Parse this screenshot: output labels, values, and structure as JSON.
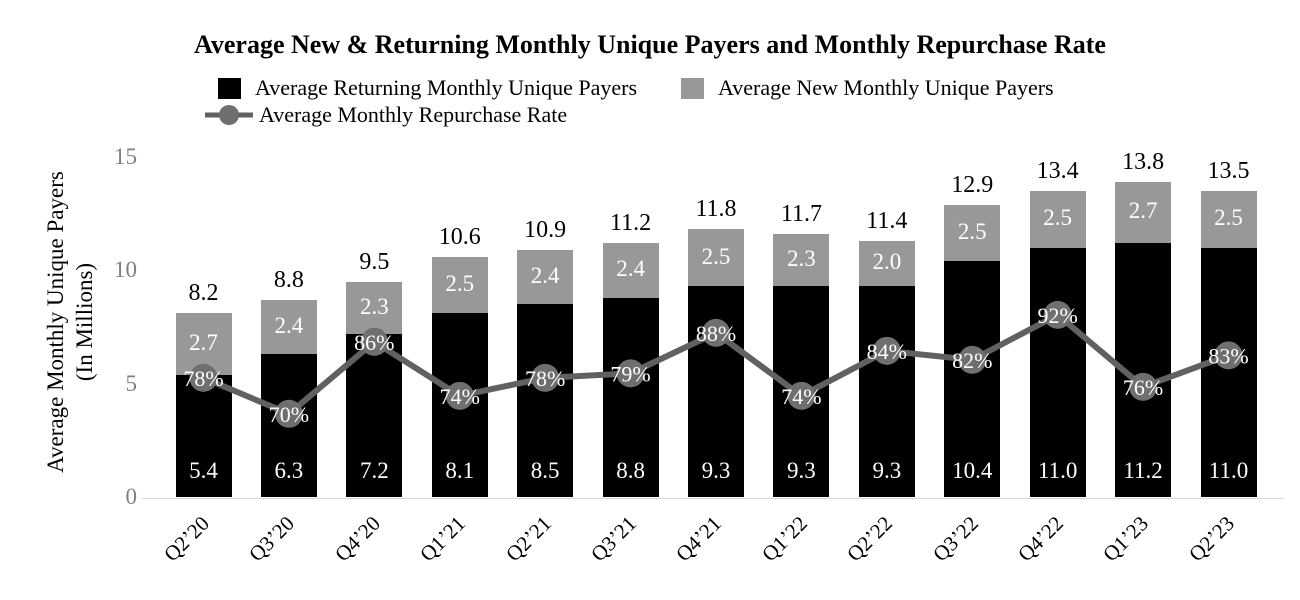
{
  "title": "Average New & Returning Monthly Unique Payers and Monthly Repurchase Rate",
  "legend": [
    {
      "label": "Average Returning Monthly Unique Payers",
      "swatch": "black-square"
    },
    {
      "label": "Average New Monthly Unique Payers",
      "swatch": "gray-square"
    },
    {
      "label": "Average Monthly Repurchase Rate",
      "swatch": "line-with-circle-marker"
    }
  ],
  "y_axis": {
    "title_line1": "Average Monthly Unique Payers",
    "title_line2": "(In Millions)",
    "ticks": [
      0,
      5,
      10,
      15
    ]
  },
  "colors": {
    "bar_returning": "#000000",
    "bar_new": "#989898",
    "line": "#616161",
    "marker": "#6f6f6f",
    "tick_text": "#7f7f7f",
    "label_on_bar": "#ffffff",
    "baseline": "#d9d9d9",
    "text": "#000000"
  },
  "chart_data": {
    "type": "bar",
    "subtype": "stacked-bars-with-line-overlay",
    "categories": [
      "Q2’20",
      "Q3’20",
      "Q4’20",
      "Q1’21",
      "Q2’21",
      "Q3’21",
      "Q4’21",
      "Q1’22",
      "Q2’22",
      "Q3’22",
      "Q4’22",
      "Q1’23",
      "Q2’23"
    ],
    "series": [
      {
        "name": "Average Returning Monthly Unique Payers",
        "type": "bar",
        "stack": 1,
        "values": [
          5.4,
          6.3,
          7.2,
          8.1,
          8.5,
          8.8,
          9.3,
          9.3,
          9.3,
          10.4,
          11.0,
          11.2,
          11.0
        ]
      },
      {
        "name": "Average New Monthly Unique Payers",
        "type": "bar",
        "stack": 1,
        "values": [
          2.7,
          2.4,
          2.3,
          2.5,
          2.4,
          2.4,
          2.5,
          2.3,
          2.0,
          2.5,
          2.5,
          2.7,
          2.5
        ]
      },
      {
        "name": "Average Monthly Repurchase Rate",
        "type": "line",
        "unit": "%",
        "values": [
          78,
          70,
          86,
          74,
          78,
          79,
          88,
          74,
          84,
          82,
          92,
          76,
          83
        ]
      }
    ],
    "totals": [
      8.2,
      8.8,
      9.5,
      10.6,
      10.9,
      11.2,
      11.8,
      11.7,
      11.4,
      12.9,
      13.4,
      13.8,
      13.5
    ],
    "title": "Average New & Returning Monthly Unique Payers and Monthly Repurchase Rate",
    "xlabel": "",
    "ylabel": "Average Monthly Unique Payers (In Millions)",
    "ylim": [
      0,
      15
    ],
    "grid": false,
    "legend_position": "top"
  }
}
